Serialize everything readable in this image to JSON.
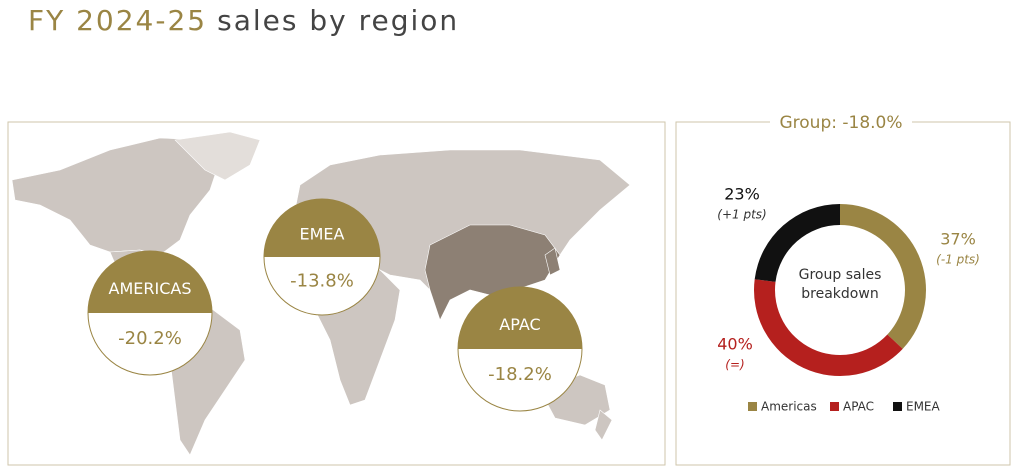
{
  "title": {
    "highlight": "FY 2024-25",
    "rest": "sales by region"
  },
  "regions": [
    {
      "name": "AMERICAS",
      "change": "-20.2%"
    },
    {
      "name": "EMEA",
      "change": "-13.8%"
    },
    {
      "name": "APAC",
      "change": "-18.2%"
    }
  ],
  "group_label": "Group: -18.0%",
  "chart_data": {
    "type": "donut",
    "center_label": "Group sales breakdown",
    "categories": [
      "Americas",
      "APAC",
      "EMEA"
    ],
    "values": [
      37,
      40,
      23
    ],
    "value_labels": [
      "37%",
      "40%",
      "23%"
    ],
    "changes": [
      "(-1 pts)",
      "(=)",
      "(+1 pts)"
    ],
    "colors": [
      "#9a8544",
      "#b5201e",
      "#111111"
    ]
  }
}
